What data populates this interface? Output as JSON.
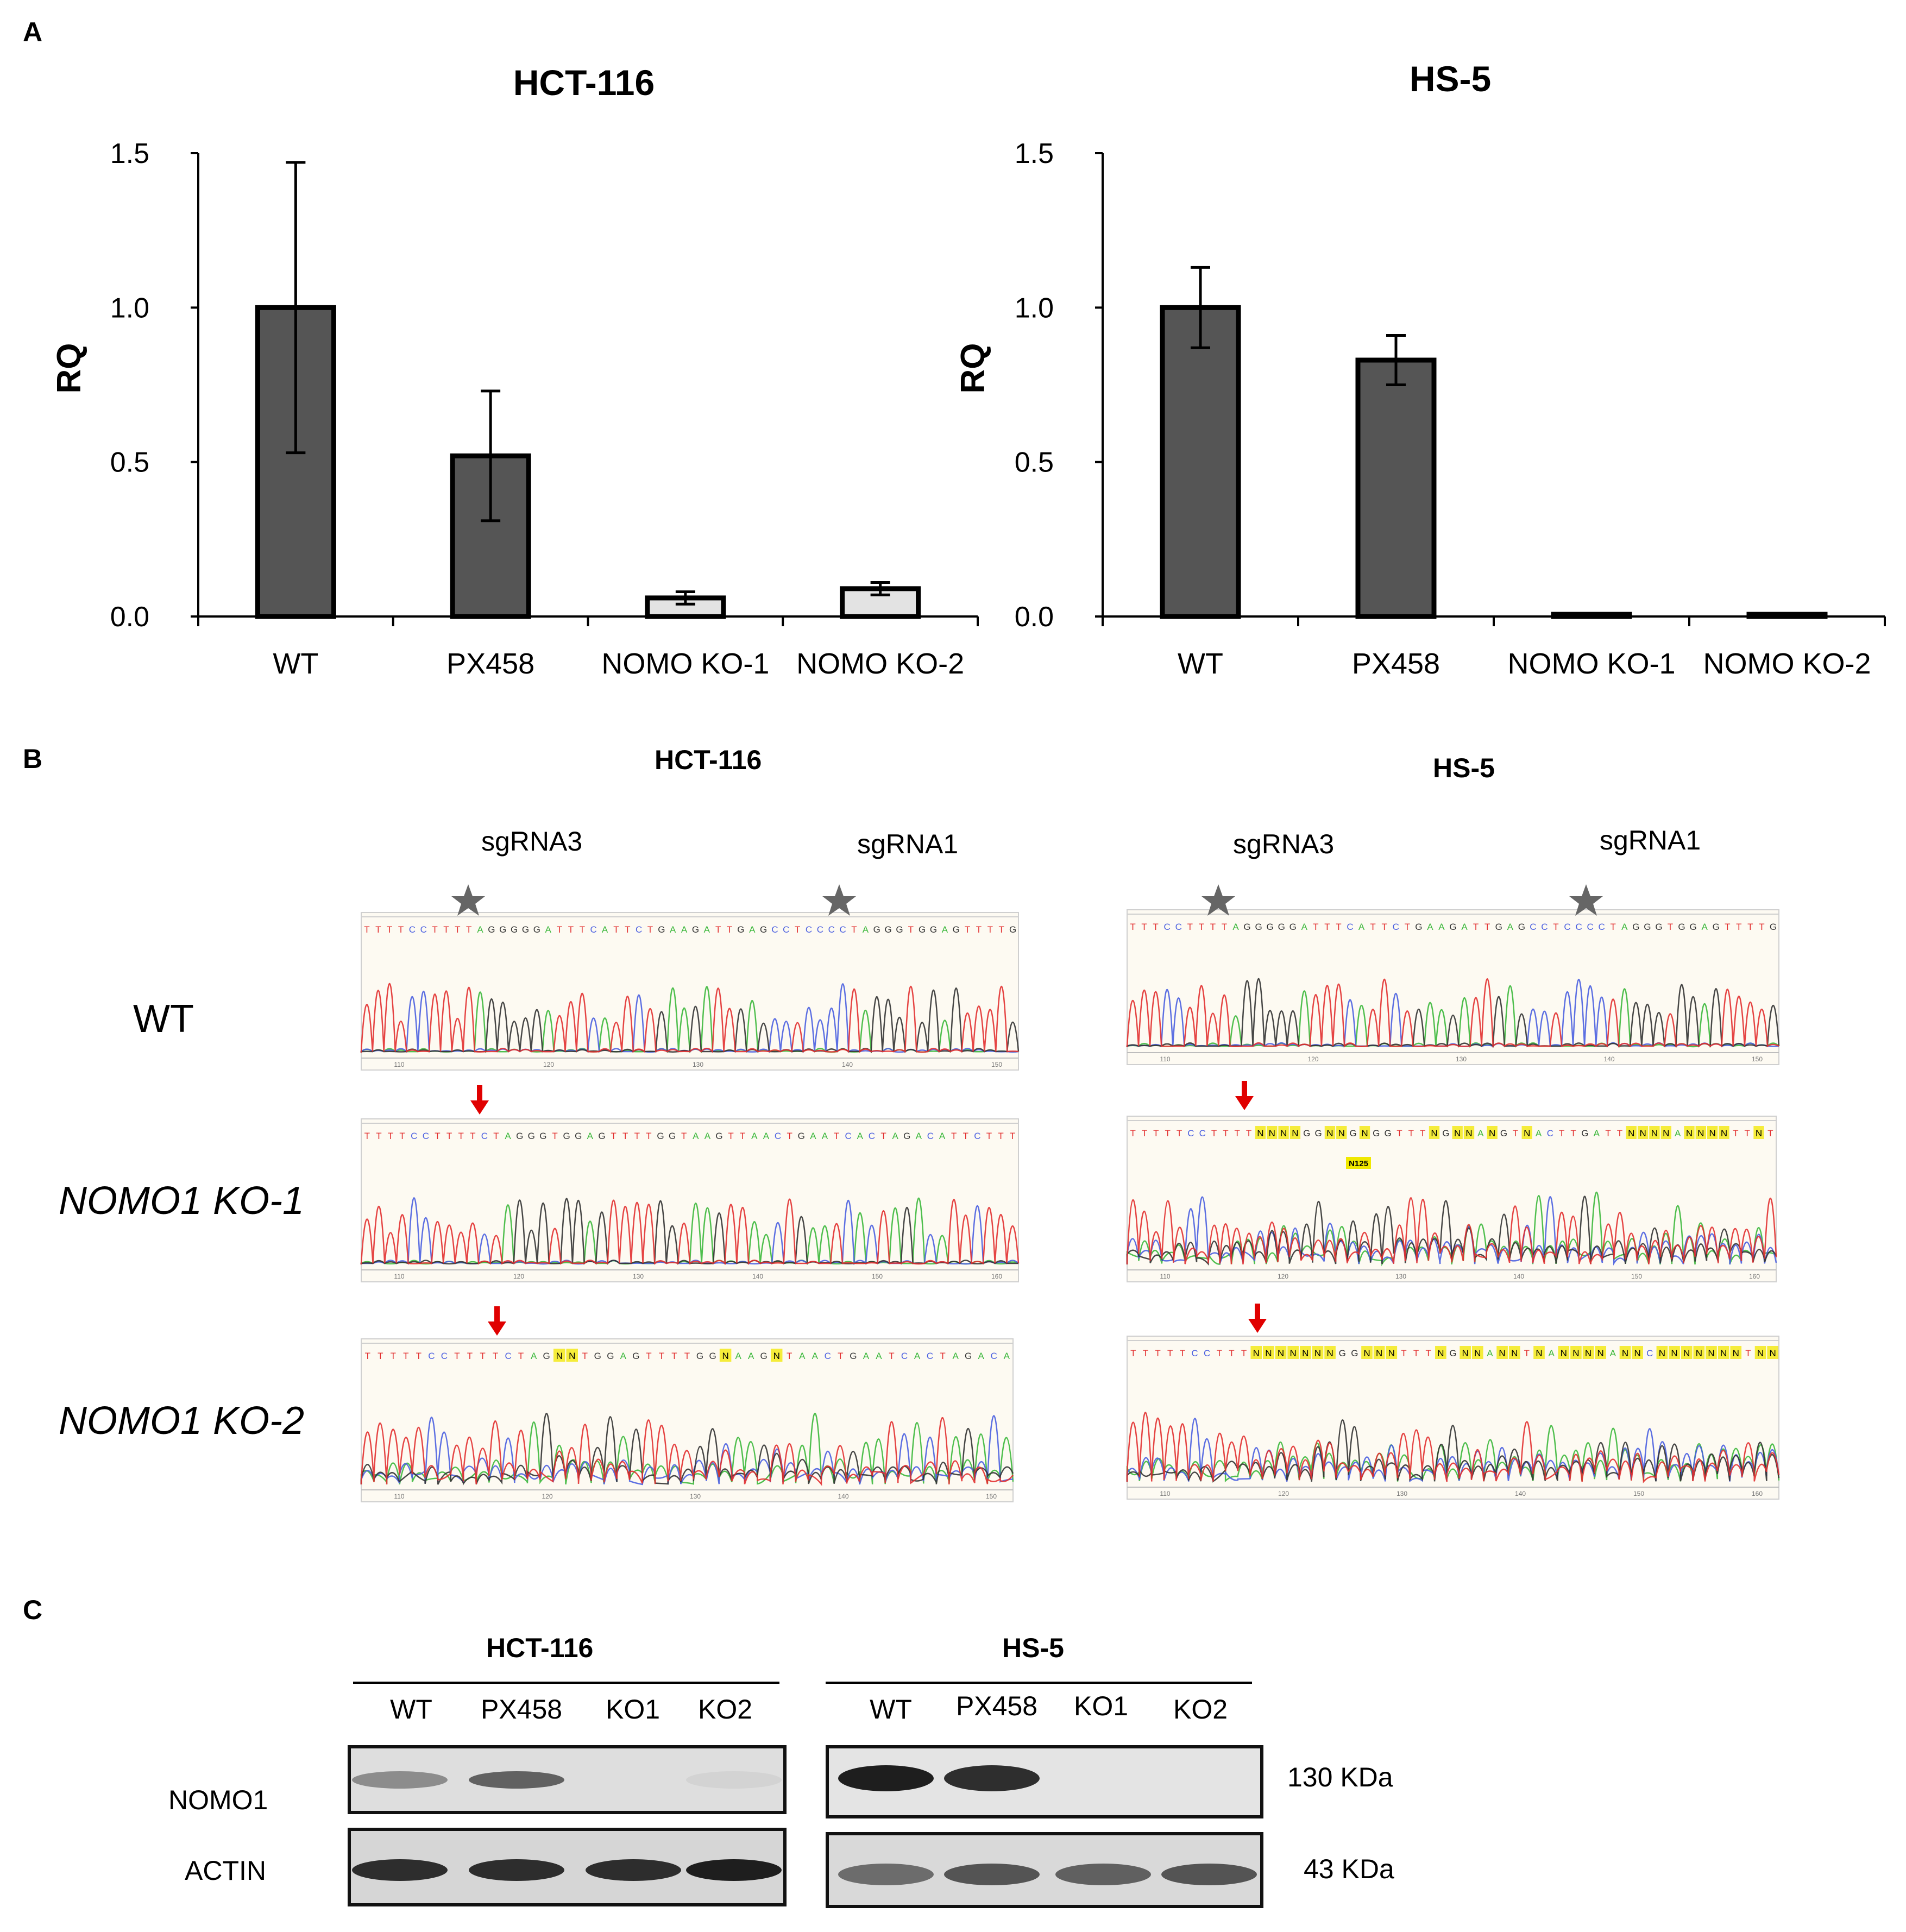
{
  "panels": {
    "a": "A",
    "b": "B",
    "c": "C"
  },
  "chart_data": [
    {
      "type": "bar",
      "title": "HCT-116",
      "ylabel": "RQ",
      "categories": [
        "WT",
        "PX458",
        "NOMO KO-1",
        "NOMO KO-2"
      ],
      "values": [
        1.0,
        0.52,
        0.06,
        0.09
      ],
      "errors": [
        0.47,
        0.21,
        0.02,
        0.02
      ],
      "bar_colors": [
        "#555555",
        "#555555",
        "#e3e3e3",
        "#e3e3e3"
      ],
      "ylim": [
        0,
        1.5
      ],
      "yticks": [
        0.0,
        0.5,
        1.0,
        1.5
      ],
      "ytick_labels": [
        "0.0",
        "0.5",
        "1.0",
        "1.5"
      ]
    },
    {
      "type": "bar",
      "title": "HS-5",
      "ylabel": "RQ",
      "categories": [
        "WT",
        "PX458",
        "NOMO KO-1",
        "NOMO KO-2"
      ],
      "values": [
        1.0,
        0.83,
        0.0,
        0.0
      ],
      "errors": [
        0.13,
        0.08,
        0.0,
        0.0
      ],
      "bar_colors": [
        "#555555",
        "#555555",
        "#e3e3e3",
        "#e3e3e3"
      ],
      "ylim": [
        0,
        1.5
      ],
      "yticks": [
        0.0,
        0.5,
        1.0,
        1.5
      ],
      "ytick_labels": [
        "0.0",
        "0.5",
        "1.0",
        "1.5"
      ]
    }
  ],
  "section_b": {
    "hct_title": "HCT-116",
    "hs_title": "HS-5",
    "sgrna3": "sgRNA3",
    "sgrna1": "sgRNA1",
    "row_wt": "WT",
    "row_ko1": "NOMO1 KO-1",
    "row_ko2": "NOMO1 KO-2",
    "n125": "N125",
    "hct": {
      "wt_seq": "TTTTCCTTTTAGGGGGATTTCATTCTGAAGATTGAGCCTCCCCTAGGGTGGAGTTTTG",
      "wt_ticks": [
        "110",
        "120",
        "130",
        "140",
        "150"
      ],
      "ko1_seq": "TTTTCCTTTTCTAGGGTGGAGTTTTGGTAAGTTAACTGAATCACTAGACATTCTTT",
      "ko1_ticks": [
        "110",
        "120",
        "130",
        "140",
        "150",
        "160"
      ],
      "ko2_seq": "TTTTTCCTTTTCTAGNNTGGAGTTTTGGNAAGNTAACTGAATCACTAGACA",
      "ko2_ticks": [
        "110",
        "120",
        "130",
        "140",
        "150"
      ]
    },
    "hs": {
      "wt_seq": "TTTCCTTTTAGGGGGATTTCATTCTGAAGATTGAGCCTCCCCTAGGGTGGAGTTTTG",
      "wt_ticks": [
        "110",
        "120",
        "130",
        "140",
        "150"
      ],
      "ko1_seq": "TTTTTCCTTTTNNNNGGNNGNGGTTTNGNNANGTNACTTGATTNNNNANNNNTTNT",
      "ko1_ticks": [
        "110",
        "120",
        "130",
        "140",
        "150",
        "160"
      ],
      "ko2_seq": "TTTTTCCTTTNNNNNNNGGNNNTTTNGNNANNTNANNNNANNCNNNNNNNTNN",
      "ko2_ticks": [
        "110",
        "120",
        "130",
        "140",
        "150",
        "160"
      ]
    }
  },
  "section_c": {
    "hct_title": "HCT-116",
    "hs_title": "HS-5",
    "lanes": [
      "WT",
      "PX458",
      "KO1",
      "KO2"
    ],
    "nomo1_label": "NOMO1",
    "actin_label": "ACTIN",
    "kda_130": "130 KDa",
    "kda_43": "43 KDa",
    "hct_nomo1_intensity": [
      0.55,
      0.75,
      0.0,
      0.05
    ],
    "hct_actin_intensity": [
      0.95,
      0.95,
      0.95,
      1.0
    ],
    "hs_nomo1_intensity": [
      1.0,
      0.95,
      0.0,
      0.0
    ],
    "hs_actin_intensity": [
      0.7,
      0.8,
      0.75,
      0.8
    ]
  }
}
